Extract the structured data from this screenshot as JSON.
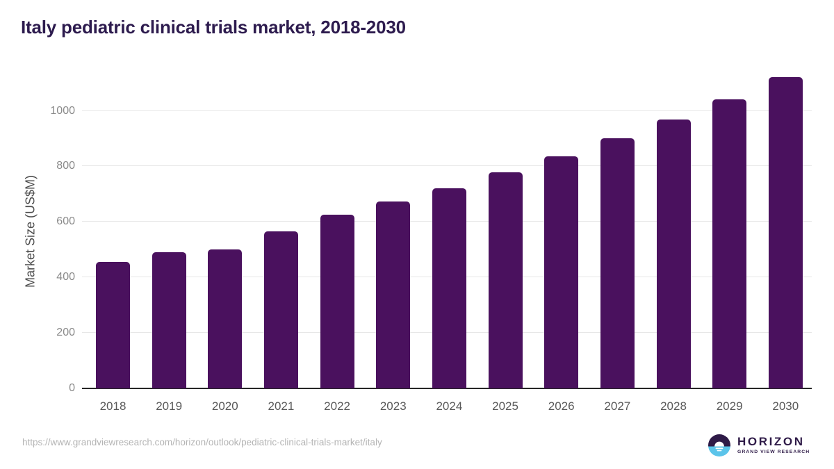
{
  "header": {
    "title": "Italy pediatric clinical trials market, 2018-2030"
  },
  "chart_data": {
    "type": "bar",
    "title": "Italy pediatric clinical trials market, 2018-2030",
    "categories": [
      "2018",
      "2019",
      "2020",
      "2021",
      "2022",
      "2023",
      "2024",
      "2025",
      "2026",
      "2027",
      "2028",
      "2029",
      "2030"
    ],
    "values": [
      456,
      491,
      500,
      565,
      626,
      674,
      722,
      778,
      837,
      902,
      968,
      1041,
      1122
    ],
    "xlabel": "",
    "ylabel": "Market Size (US$M)",
    "ylim": [
      0,
      1150
    ],
    "yticks": [
      0,
      200,
      400,
      600,
      800,
      1000
    ],
    "grid": true,
    "legend": false,
    "bar_color": "#4a115e"
  },
  "footer": {
    "source_url": "https://www.grandviewresearch.com/horizon/outlook/pediatric-clinical-trials-market/italy",
    "logo_text": "HORIZON",
    "logo_subtext": "GRAND VIEW RESEARCH"
  },
  "colors": {
    "bar": "#4a115e",
    "title": "#2d1b4e",
    "axis_line": "#262626",
    "gridline": "#e7e7e7",
    "y_tick_label": "#8a8a8a",
    "x_tick_label": "#595959",
    "y_axis_title": "#4d4d4d",
    "url_text": "#b4b4b4",
    "logo_purple": "#2e1a47",
    "logo_blue": "#5bc4ea"
  }
}
